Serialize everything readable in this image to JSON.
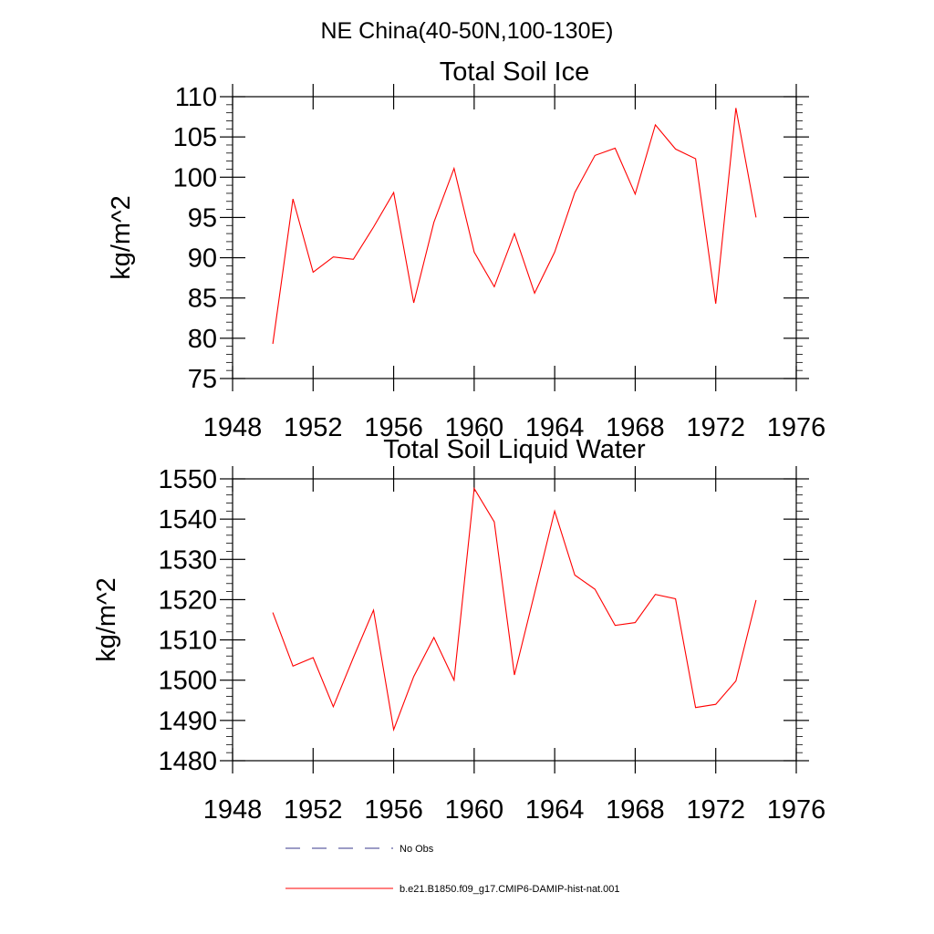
{
  "figure": {
    "suptitle": "NE China(40-50N,100-130E)"
  },
  "chart_data": [
    {
      "type": "line",
      "title": "Total Soil Ice",
      "xlabel": "",
      "ylabel": "kg/m^2",
      "xlim": [
        1948,
        1976
      ],
      "ylim": [
        75,
        110
      ],
      "xticks": [
        1948,
        1952,
        1956,
        1960,
        1964,
        1968,
        1972,
        1976
      ],
      "yticks": [
        75,
        80,
        85,
        90,
        95,
        100,
        105,
        110
      ],
      "x": [
        1950,
        1951,
        1952,
        1953,
        1954,
        1955,
        1956,
        1957,
        1958,
        1959,
        1960,
        1961,
        1962,
        1963,
        1964,
        1965,
        1966,
        1967,
        1968,
        1969,
        1970,
        1971,
        1972,
        1973,
        1974
      ],
      "series": [
        {
          "name": "b.e21.B1850.f09_g17.CMIP6-DAMIP-hist-nat.001",
          "color": "#ff0000",
          "values": [
            79.3,
            97.3,
            88.2,
            90.1,
            89.8,
            93.8,
            98.1,
            84.4,
            94.4,
            101.1,
            90.7,
            86.4,
            93.0,
            85.6,
            90.7,
            98.1,
            102.7,
            103.6,
            97.9,
            106.5,
            103.5,
            102.3,
            84.3,
            108.6,
            95.0
          ]
        }
      ],
      "grid": false
    },
    {
      "type": "line",
      "title": "Total Soil Liquid Water",
      "xlabel": "",
      "ylabel": "kg/m^2",
      "xlim": [
        1948,
        1976
      ],
      "ylim": [
        1480,
        1550
      ],
      "xticks": [
        1948,
        1952,
        1956,
        1960,
        1964,
        1968,
        1972,
        1976
      ],
      "yticks": [
        1480,
        1490,
        1500,
        1510,
        1520,
        1530,
        1540,
        1550
      ],
      "x": [
        1950,
        1951,
        1952,
        1953,
        1954,
        1955,
        1956,
        1957,
        1958,
        1959,
        1960,
        1961,
        1962,
        1963,
        1964,
        1965,
        1966,
        1967,
        1968,
        1969,
        1970,
        1971,
        1972,
        1973,
        1974
      ],
      "series": [
        {
          "name": "b.e21.B1850.f09_g17.CMIP6-DAMIP-hist-nat.001",
          "color": "#ff0000",
          "values": [
            1516.8,
            1503.5,
            1505.6,
            1493.4,
            1505.6,
            1517.4,
            1487.7,
            1500.9,
            1510.6,
            1500.0,
            1547.6,
            1539.3,
            1501.3,
            1521.6,
            1542.0,
            1526.1,
            1522.6,
            1513.6,
            1514.3,
            1521.3,
            1520.2,
            1493.2,
            1494.0,
            1499.8,
            1519.9
          ]
        }
      ],
      "grid": false
    }
  ],
  "legend": {
    "placement": "bottom",
    "items": [
      {
        "label": "No Obs",
        "color": "#3a3a8c",
        "dash": "dashed"
      },
      {
        "label": "b.e21.B1850.f09_g17.CMIP6-DAMIP-hist-nat.001",
        "color": "#ff0000",
        "dash": "solid"
      }
    ]
  }
}
